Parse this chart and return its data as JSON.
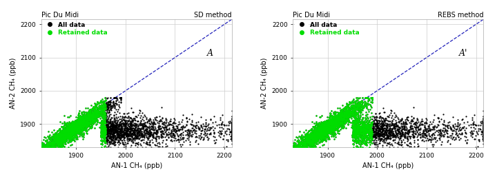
{
  "title_left": "Pic Du Midi",
  "title_right": "Pic Du Midi",
  "method_left": "SD method",
  "method_right": "REBS method",
  "label_left": "A",
  "label_right": "A'",
  "xlabel": "AN-1 CH₄ (ppb)",
  "ylabel": "AN-2 CH₄ (ppb)",
  "xlim": [
    1830,
    2215
  ],
  "ylim": [
    1830,
    2215
  ],
  "xticks": [
    1900,
    2000,
    2100,
    2200
  ],
  "yticks": [
    1900,
    2000,
    2100,
    2200
  ],
  "all_data_color": "#000000",
  "retained_color": "#00dd00",
  "diag_color": "#2222bb",
  "legend_all": "All data",
  "legend_retained": "Retained data",
  "seed": 42,
  "background_color": "#ffffff",
  "grid_color": "#cccccc"
}
